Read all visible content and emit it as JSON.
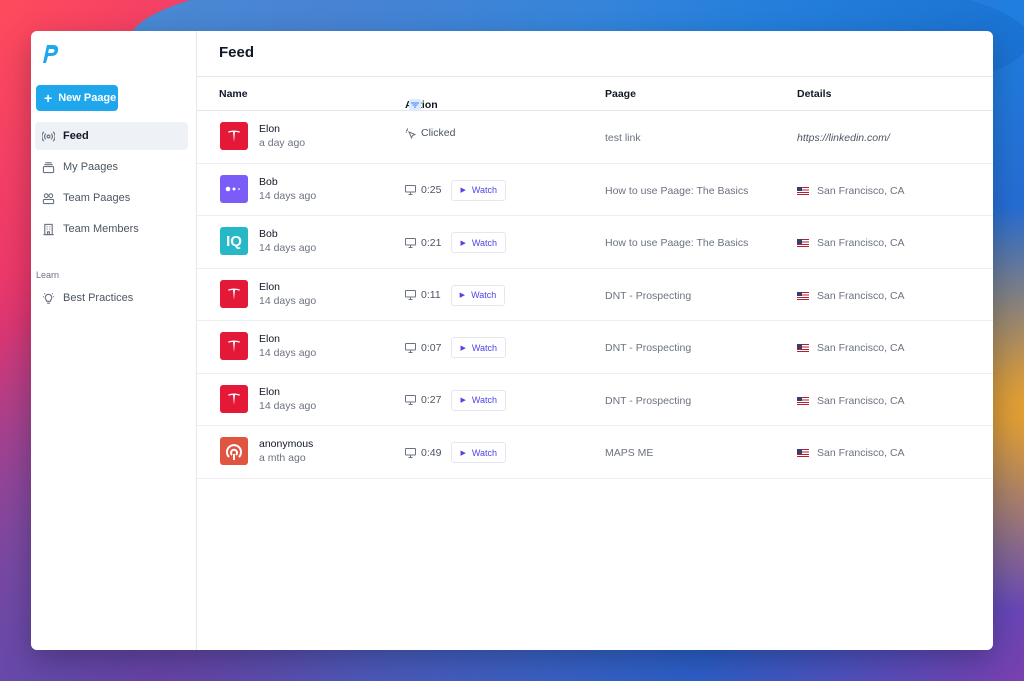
{
  "sidebar": {
    "new_button": "New Paage",
    "items": [
      {
        "label": "Feed",
        "icon": "broadcast-icon"
      },
      {
        "label": "My Paages",
        "icon": "stack-icon"
      },
      {
        "label": "Team Paages",
        "icon": "users-icon"
      },
      {
        "label": "Team Members",
        "icon": "building-icon"
      }
    ],
    "learn_label": "Learn",
    "learn_items": [
      {
        "label": "Best Practices",
        "icon": "lightbulb-icon"
      }
    ]
  },
  "main": {
    "title": "Feed",
    "columns": {
      "name": "Name",
      "action": "Action",
      "paage": "Paage",
      "details": "Details"
    },
    "watch_label": "Watch",
    "rows": [
      {
        "name": "Elon",
        "time": "a day ago",
        "avatar": "tesla",
        "action": "Clicked",
        "paage": "test link",
        "details": "https://linkedin.com/"
      },
      {
        "name": "Bob",
        "time": "14 days ago",
        "avatar": "purple",
        "action": "0:25",
        "paage": "How to use Paage: The Basics",
        "details": "San Francisco, CA"
      },
      {
        "name": "Bob",
        "time": "14 days ago",
        "avatar": "teal",
        "avatar_text": "IQ",
        "action": "0:21",
        "paage": "How to use Paage: The Basics",
        "details": "San Francisco, CA"
      },
      {
        "name": "Elon",
        "time": "14 days ago",
        "avatar": "tesla",
        "action": "0:11",
        "paage": "DNT - Prospecting",
        "details": "San Francisco, CA"
      },
      {
        "name": "Elon",
        "time": "14 days ago",
        "avatar": "tesla",
        "action": "0:07",
        "paage": "DNT - Prospecting",
        "details": "San Francisco, CA"
      },
      {
        "name": "Elon",
        "time": "14 days ago",
        "avatar": "tesla",
        "action": "0:27",
        "paage": "DNT - Prospecting",
        "details": "San Francisco, CA"
      },
      {
        "name": "anonymous",
        "time": "a mth ago",
        "avatar": "anon",
        "action": "0:49",
        "paage": "MAPS ME",
        "details": "San Francisco, CA"
      }
    ]
  },
  "colors": {
    "accent": "#1ea7ec",
    "tesla": "#e31937",
    "watch": "#4f46e5"
  }
}
